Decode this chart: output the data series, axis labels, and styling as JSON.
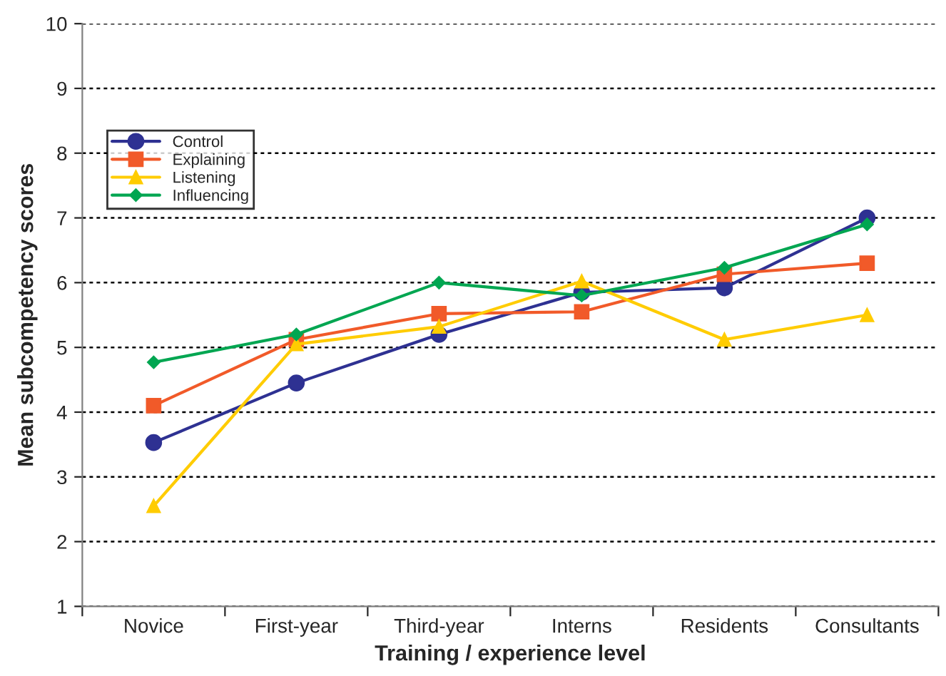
{
  "chart_data": {
    "type": "line",
    "xlabel": "Training / experience level",
    "ylabel": "Mean subcompetency scores",
    "categories": [
      "Novice",
      "First-year",
      "Third-year",
      "Interns",
      "Residents",
      "Consultants"
    ],
    "series": [
      {
        "name": "Control",
        "color": "#2e3192",
        "marker": "circle",
        "values": [
          3.53,
          4.45,
          5.2,
          5.85,
          5.92,
          7.0
        ]
      },
      {
        "name": "Explaining",
        "color": "#f15a29",
        "marker": "square",
        "values": [
          4.1,
          5.12,
          5.52,
          5.55,
          6.13,
          6.3
        ]
      },
      {
        "name": "Listening",
        "color": "#ffcc00",
        "marker": "triangle",
        "values": [
          2.55,
          5.05,
          5.32,
          6.02,
          5.12,
          5.5
        ]
      },
      {
        "name": "Influencing",
        "color": "#00a651",
        "marker": "diamond",
        "values": [
          4.77,
          5.2,
          6.0,
          5.8,
          6.23,
          6.9
        ]
      }
    ],
    "ylim": [
      1,
      10
    ],
    "yticks": [
      1,
      2,
      3,
      4,
      5,
      6,
      7,
      8,
      9,
      10
    ],
    "grid": "y",
    "legend": "top left",
    "line_style": "solid"
  }
}
